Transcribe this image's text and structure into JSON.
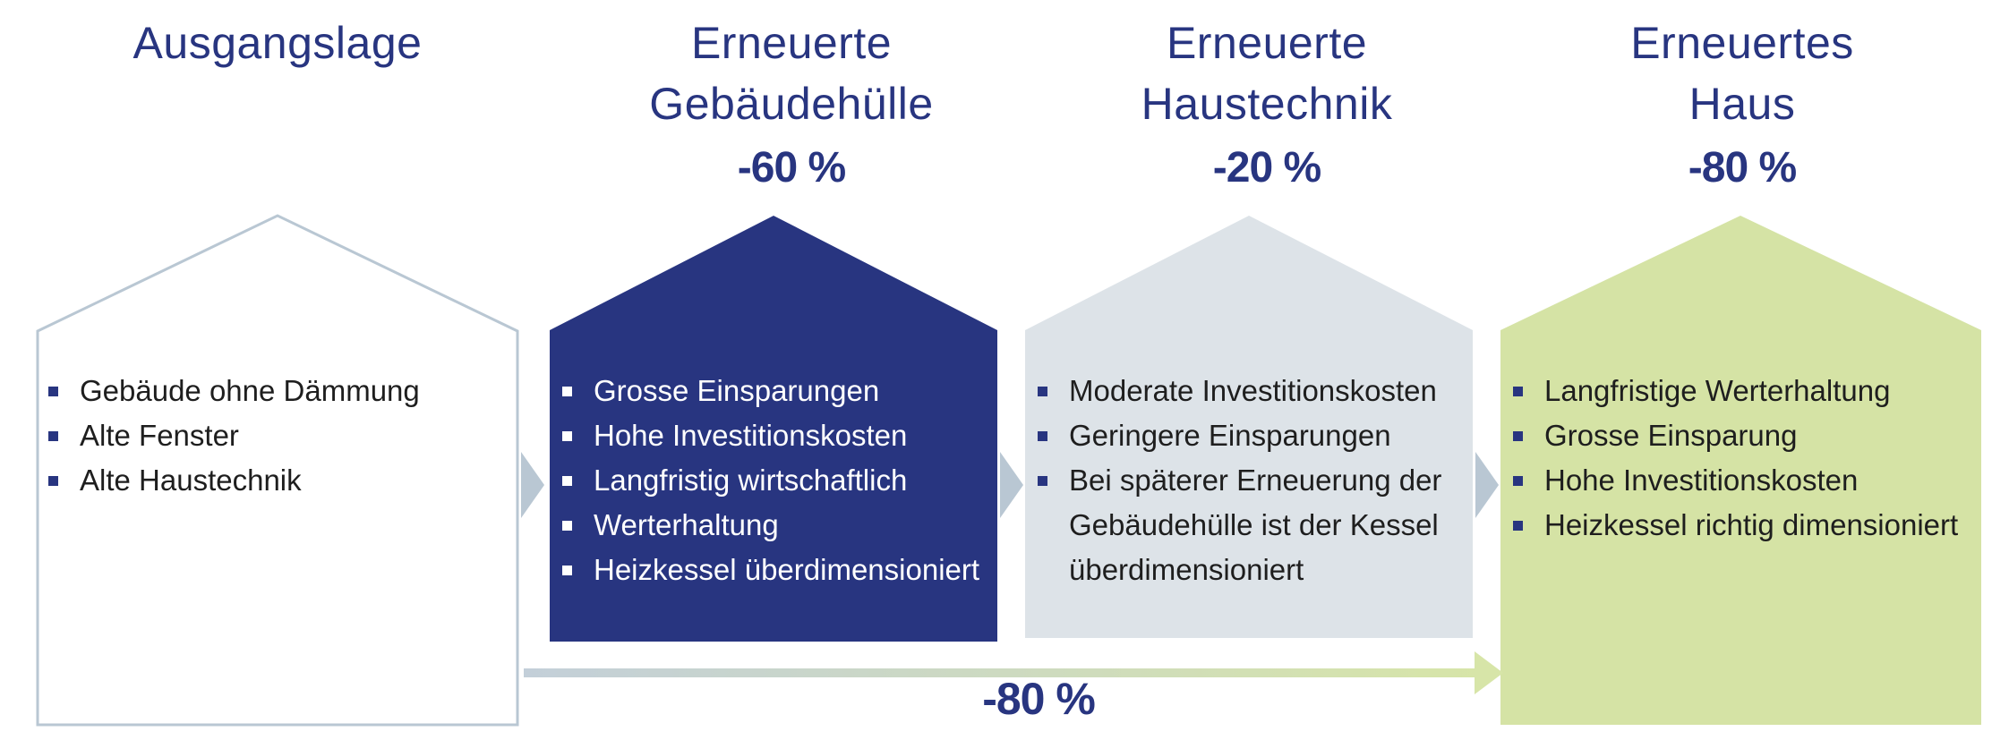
{
  "stages": [
    {
      "title_lines": [
        "Ausgangslage"
      ],
      "percentage": "",
      "items": [
        "Gebäude ohne Dämmung",
        "Alte Fenster",
        "Alte Haustechnik"
      ]
    },
    {
      "title_lines": [
        "Erneuerte",
        "Gebäudehülle"
      ],
      "percentage": "-60 %",
      "items": [
        "Grosse Einsparungen",
        "Hohe Investitionskosten",
        "Langfristig wirtschaftlich",
        "Werterhaltung",
        "Heizkessel überdimensioniert"
      ]
    },
    {
      "title_lines": [
        "Erneuerte",
        "Haustechnik"
      ],
      "percentage": "-20 %",
      "items": [
        "Moderate Investitionskosten",
        "Geringere Einsparungen",
        "Bei späterer Erneuerung der",
        "Gebäudehülle ist der Kessel",
        "überdimensioniert"
      ]
    },
    {
      "title_lines": [
        "Erneuertes",
        "Haus"
      ],
      "percentage": "-80 %",
      "items": [
        "Langfristige Werterhaltung",
        "Grosse Einsparung",
        "Hohe Investitionskosten",
        "Heizkessel richtig dimensioniert"
      ]
    }
  ],
  "total_reduction": "-80 %",
  "colors": {
    "title": "#283580",
    "house_outline": "#b9c7d3",
    "house_dark": "#283580",
    "house_light_grey": "#dde3e8",
    "house_green": "#d5e3a5",
    "arrow_start": "#c3cfd9",
    "arrow_end": "#d7e5a8"
  }
}
